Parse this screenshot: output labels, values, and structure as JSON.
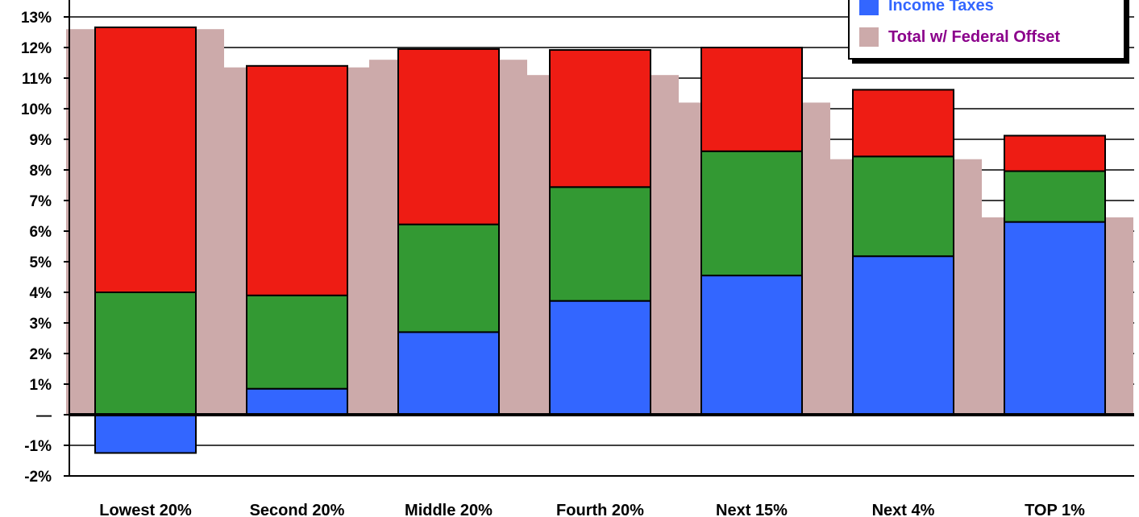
{
  "chart_data": {
    "type": "bar",
    "stacked": true,
    "categories": [
      "Lowest 20%",
      "Second 20%",
      "Middle 20%",
      "Fourth 20%",
      "Next 15%",
      "Next 4%",
      "TOP 1%"
    ],
    "series": [
      {
        "name": "Income Taxes",
        "color": "#3366ff",
        "values": [
          -1.25,
          0.85,
          2.7,
          3.72,
          4.55,
          5.18,
          6.3
        ]
      },
      {
        "color": "#339933",
        "values": [
          4.0,
          3.05,
          3.52,
          3.72,
          4.06,
          3.26,
          1.66
        ]
      },
      {
        "color": "#ee1c14",
        "values": [
          8.66,
          7.5,
          5.73,
          4.48,
          3.39,
          2.18,
          1.16
        ]
      }
    ],
    "totals": [
      12.66,
      11.4,
      11.95,
      11.92,
      12.0,
      10.62,
      9.12
    ],
    "offset_series": {
      "name": "Total w/ Federal Offset",
      "color": "#ccaaaa",
      "values": [
        12.6,
        11.35,
        11.6,
        11.1,
        10.2,
        8.35,
        6.45
      ]
    },
    "y_ticks": [
      {
        "v": 13,
        "label": "13%"
      },
      {
        "v": 12,
        "label": "12%"
      },
      {
        "v": 11,
        "label": "11%"
      },
      {
        "v": 10,
        "label": "10%"
      },
      {
        "v": 9,
        "label": "9%"
      },
      {
        "v": 8,
        "label": "8%"
      },
      {
        "v": 7,
        "label": "7%"
      },
      {
        "v": 6,
        "label": "6%"
      },
      {
        "v": 5,
        "label": "5%"
      },
      {
        "v": 4,
        "label": "4%"
      },
      {
        "v": 3,
        "label": "3%"
      },
      {
        "v": 2,
        "label": "2%"
      },
      {
        "v": 1,
        "label": "1%"
      },
      {
        "v": 0,
        "label": "—"
      },
      {
        "v": -1,
        "label": "-1%"
      },
      {
        "v": -2,
        "label": "-2%"
      }
    ],
    "ylim": [
      -2,
      13
    ],
    "grid": true,
    "legend_position": "top-right"
  },
  "legend": {
    "items": [
      {
        "label": "Income Taxes",
        "color": "#3366ff",
        "text_color": "#3366ff"
      },
      {
        "label": "Total w/ Federal Offset",
        "color": "#ccaaaa",
        "text_color": "#8b008b"
      }
    ]
  }
}
